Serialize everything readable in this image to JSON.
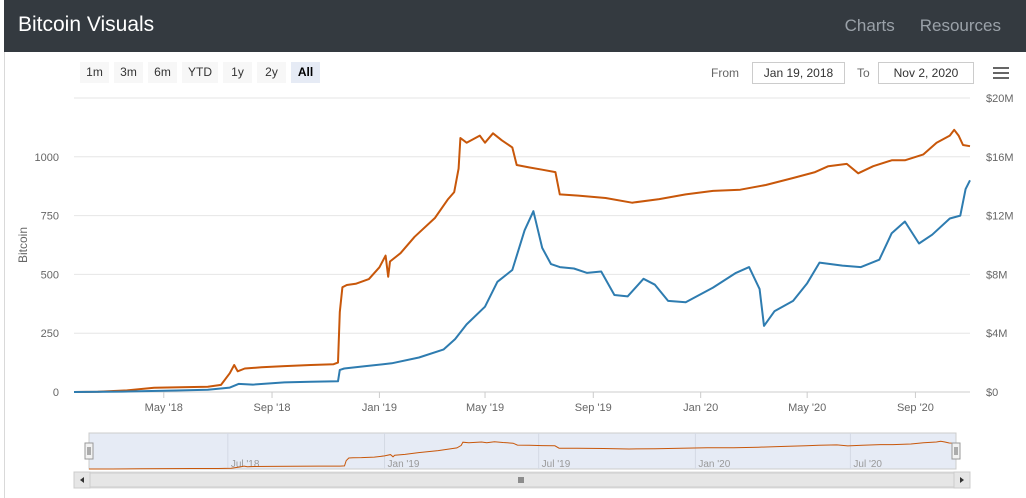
{
  "header": {
    "title": "Bitcoin Visuals",
    "nav": [
      "Charts",
      "Resources"
    ]
  },
  "toolbar": {
    "ranges": [
      "1m",
      "3m",
      "6m",
      "YTD",
      "1y",
      "2y",
      "All"
    ],
    "selected_range": "All",
    "from_label": "From",
    "from_value": "Jan 19, 2018",
    "to_label": "To",
    "to_value": "Nov 2, 2020",
    "menu_icon": "hamburger-menu-icon"
  },
  "chart_data": {
    "type": "line",
    "ylabel": "Bitcoin",
    "y_left_ticks": [
      "0",
      "250",
      "500",
      "750",
      "1000"
    ],
    "y_left_range": [
      0,
      1250
    ],
    "y_right_ticks": [
      "$0",
      "$4M",
      "$8M",
      "$12M",
      "$16M",
      "$20M"
    ],
    "y_right_range": [
      0,
      20000000
    ],
    "x_ticks": [
      "May '18",
      "Sep '18",
      "Jan '19",
      "May '19",
      "Sep '19",
      "Jan '20",
      "May '20",
      "Sep '20"
    ],
    "x_range": [
      "2018-01-19",
      "2020-11-02"
    ],
    "navigator_ticks": [
      "Jul '18",
      "Jan '19",
      "Jul '19",
      "Jan '20",
      "Jul '20"
    ],
    "grid": true,
    "colors": {
      "bitcoin": "#c8570a",
      "usd": "#2e7cb0",
      "navigator_fill": "#e6ebf5"
    },
    "series": [
      {
        "axis": "left",
        "color": "#c8570a",
        "points": [
          [
            "2018-01-19",
            0
          ],
          [
            "2018-02-15",
            1
          ],
          [
            "2018-03-20",
            7
          ],
          [
            "2018-04-20",
            18
          ],
          [
            "2018-05-20",
            20
          ],
          [
            "2018-06-20",
            22
          ],
          [
            "2018-07-05",
            30
          ],
          [
            "2018-07-15",
            80
          ],
          [
            "2018-07-20",
            115
          ],
          [
            "2018-07-24",
            88
          ],
          [
            "2018-08-01",
            100
          ],
          [
            "2018-08-20",
            105
          ],
          [
            "2018-09-15",
            110
          ],
          [
            "2018-10-15",
            115
          ],
          [
            "2018-11-10",
            118
          ],
          [
            "2018-11-15",
            125
          ],
          [
            "2018-11-17",
            340
          ],
          [
            "2018-11-20",
            445
          ],
          [
            "2018-11-25",
            455
          ],
          [
            "2018-12-05",
            460
          ],
          [
            "2018-12-20",
            480
          ],
          [
            "2019-01-01",
            530
          ],
          [
            "2019-01-08",
            580
          ],
          [
            "2019-01-11",
            490
          ],
          [
            "2019-01-13",
            555
          ],
          [
            "2019-01-25",
            590
          ],
          [
            "2019-02-10",
            660
          ],
          [
            "2019-03-05",
            740
          ],
          [
            "2019-03-20",
            820
          ],
          [
            "2019-03-27",
            850
          ],
          [
            "2019-04-01",
            950
          ],
          [
            "2019-04-03",
            1080
          ],
          [
            "2019-04-10",
            1060
          ],
          [
            "2019-04-25",
            1090
          ],
          [
            "2019-05-01",
            1060
          ],
          [
            "2019-05-10",
            1100
          ],
          [
            "2019-05-20",
            1070
          ],
          [
            "2019-06-01",
            1040
          ],
          [
            "2019-06-06",
            965
          ],
          [
            "2019-06-20",
            955
          ],
          [
            "2019-07-05",
            945
          ],
          [
            "2019-07-20",
            935
          ],
          [
            "2019-07-25",
            840
          ],
          [
            "2019-08-15",
            835
          ],
          [
            "2019-09-15",
            825
          ],
          [
            "2019-10-15",
            805
          ],
          [
            "2019-11-15",
            820
          ],
          [
            "2019-12-15",
            840
          ],
          [
            "2020-01-15",
            855
          ],
          [
            "2020-02-15",
            860
          ],
          [
            "2020-03-15",
            880
          ],
          [
            "2020-04-15",
            910
          ],
          [
            "2020-05-10",
            935
          ],
          [
            "2020-05-25",
            960
          ],
          [
            "2020-06-15",
            970
          ],
          [
            "2020-06-28",
            930
          ],
          [
            "2020-07-15",
            960
          ],
          [
            "2020-08-05",
            985
          ],
          [
            "2020-08-20",
            985
          ],
          [
            "2020-09-10",
            1010
          ],
          [
            "2020-09-25",
            1060
          ],
          [
            "2020-10-10",
            1090
          ],
          [
            "2020-10-15",
            1115
          ],
          [
            "2020-10-20",
            1090
          ],
          [
            "2020-10-25",
            1050
          ],
          [
            "2020-11-02",
            1045
          ]
        ]
      },
      {
        "axis": "right",
        "color": "#2e7cb0",
        "points": [
          [
            "2018-01-19",
            0
          ],
          [
            "2018-03-15",
            30000
          ],
          [
            "2018-05-15",
            100000
          ],
          [
            "2018-06-20",
            150000
          ],
          [
            "2018-07-15",
            300000
          ],
          [
            "2018-07-25",
            550000
          ],
          [
            "2018-08-10",
            500000
          ],
          [
            "2018-09-15",
            650000
          ],
          [
            "2018-10-15",
            700000
          ],
          [
            "2018-11-15",
            730000
          ],
          [
            "2018-11-17",
            1500000
          ],
          [
            "2018-11-22",
            1600000
          ],
          [
            "2018-12-15",
            1750000
          ],
          [
            "2019-01-15",
            1950000
          ],
          [
            "2019-02-15",
            2350000
          ],
          [
            "2019-03-15",
            2900000
          ],
          [
            "2019-03-28",
            3600000
          ],
          [
            "2019-04-10",
            4600000
          ],
          [
            "2019-05-01",
            5800000
          ],
          [
            "2019-05-15",
            7500000
          ],
          [
            "2019-06-01",
            8300000
          ],
          [
            "2019-06-15",
            11000000
          ],
          [
            "2019-06-25",
            12300000
          ],
          [
            "2019-07-05",
            9800000
          ],
          [
            "2019-07-15",
            8700000
          ],
          [
            "2019-07-25",
            8500000
          ],
          [
            "2019-08-10",
            8400000
          ],
          [
            "2019-08-25",
            8100000
          ],
          [
            "2019-09-10",
            8200000
          ],
          [
            "2019-09-25",
            6600000
          ],
          [
            "2019-10-10",
            6500000
          ],
          [
            "2019-10-28",
            7700000
          ],
          [
            "2019-11-10",
            7300000
          ],
          [
            "2019-11-25",
            6200000
          ],
          [
            "2019-12-15",
            6100000
          ],
          [
            "2020-01-15",
            7100000
          ],
          [
            "2020-02-10",
            8100000
          ],
          [
            "2020-02-25",
            8500000
          ],
          [
            "2020-03-08",
            7000000
          ],
          [
            "2020-03-13",
            4500000
          ],
          [
            "2020-03-25",
            5500000
          ],
          [
            "2020-04-15",
            6200000
          ],
          [
            "2020-05-01",
            7400000
          ],
          [
            "2020-05-15",
            8800000
          ],
          [
            "2020-06-10",
            8600000
          ],
          [
            "2020-07-01",
            8500000
          ],
          [
            "2020-07-22",
            9000000
          ],
          [
            "2020-08-05",
            10800000
          ],
          [
            "2020-08-20",
            11600000
          ],
          [
            "2020-09-05",
            10100000
          ],
          [
            "2020-09-20",
            10700000
          ],
          [
            "2020-10-10",
            11800000
          ],
          [
            "2020-10-22",
            12000000
          ],
          [
            "2020-10-28",
            13800000
          ],
          [
            "2020-11-02",
            14400000
          ]
        ]
      }
    ]
  }
}
